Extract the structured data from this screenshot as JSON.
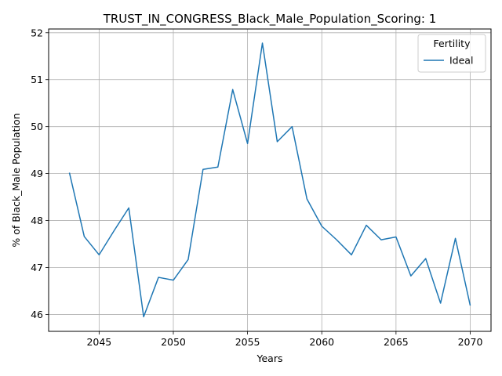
{
  "chart_data": {
    "type": "line",
    "title": "TRUST_IN_CONGRESS_Black_Male_Population_Scoring: 1",
    "xlabel": "Years",
    "ylabel": "% of Black_Male Population",
    "xlim": [
      2041.6,
      2071.4
    ],
    "ylim": [
      45.64,
      52.08
    ],
    "xticks": [
      2045,
      2050,
      2055,
      2060,
      2065,
      2070
    ],
    "yticks": [
      46,
      47,
      48,
      49,
      50,
      51,
      52
    ],
    "grid": true,
    "legend": {
      "title": "Fertility",
      "placement": "top-right"
    },
    "series": [
      {
        "name": "Ideal",
        "color": "#1f77b4",
        "x": [
          2043,
          2044,
          2045,
          2046,
          2047,
          2048,
          2049,
          2050,
          2051,
          2052,
          2053,
          2054,
          2055,
          2056,
          2057,
          2058,
          2059,
          2060,
          2061,
          2062,
          2063,
          2064,
          2065,
          2066,
          2067,
          2068,
          2069,
          2070
        ],
        "y": [
          49.02,
          47.66,
          47.27,
          47.78,
          48.27,
          45.95,
          46.79,
          46.73,
          47.17,
          49.09,
          49.14,
          50.79,
          49.64,
          51.78,
          49.68,
          50.0,
          48.46,
          47.88,
          47.59,
          47.27,
          47.9,
          47.59,
          47.65,
          46.82,
          47.19,
          46.24,
          47.62,
          46.19
        ]
      }
    ]
  }
}
